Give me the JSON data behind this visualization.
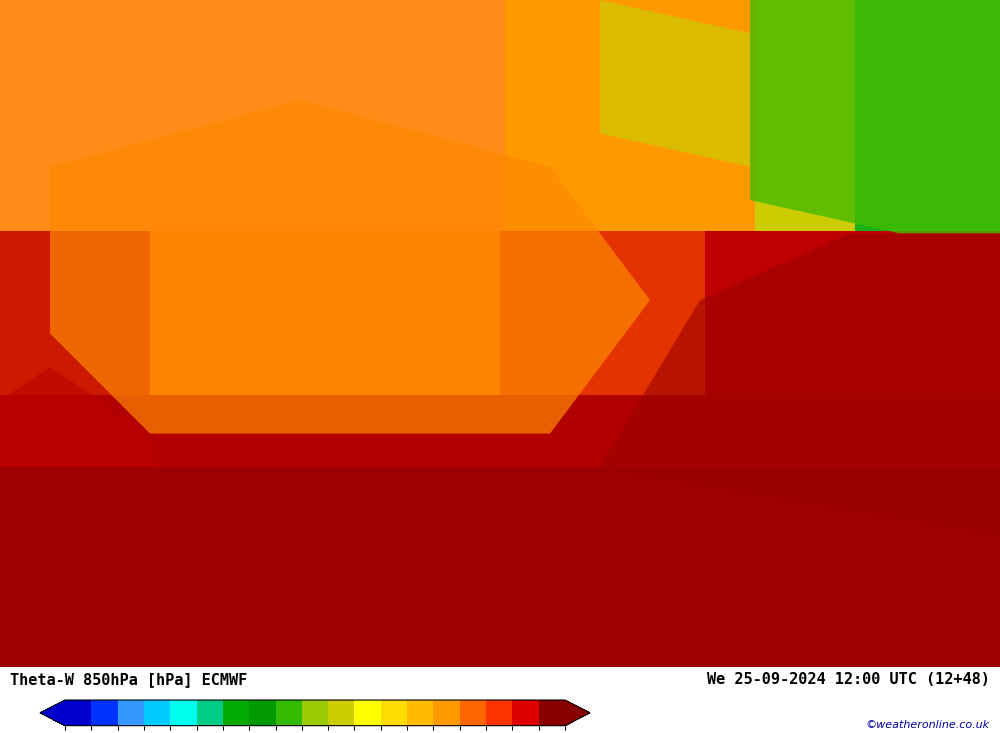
{
  "title_left": "Theta-W 850hPa [hPa] ECMWF",
  "title_right": "We 25-09-2024 12:00 UTC (12+48)",
  "watermark": "©weatheronline.co.uk",
  "colorbar_levels": [
    -12,
    -10,
    -8,
    -6,
    -4,
    -3,
    -2,
    -1,
    0,
    1,
    2,
    3,
    4,
    6,
    8,
    10,
    12,
    14,
    16,
    18
  ],
  "colorbar_colors": [
    "#0000CD",
    "#0033FF",
    "#3399FF",
    "#00CCFF",
    "#00FFEE",
    "#00CC88",
    "#00AA00",
    "#009900",
    "#33BB00",
    "#99CC00",
    "#CCCC00",
    "#FFFF00",
    "#FFDD00",
    "#FFBB00",
    "#FF9900",
    "#FF6600",
    "#FF3300",
    "#DD0000",
    "#AA0000",
    "#880000"
  ],
  "background_color": "#FFFFFF",
  "map_bg": "#FF6600",
  "bottom_bar_height": 0.09,
  "fig_width": 10.0,
  "fig_height": 7.33
}
